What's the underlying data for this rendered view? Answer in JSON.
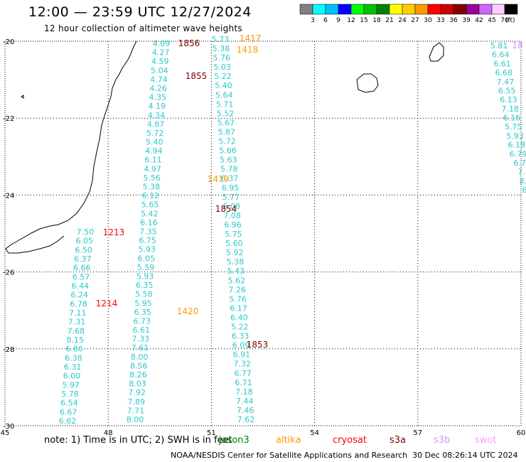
{
  "header": {
    "title": "12:00 — 23:59 UTC 12/27/2024",
    "subtitle": "12 hour collection of altimeter wave heights"
  },
  "colorbar": {
    "colors": [
      "#808080",
      "#00ffff",
      "#00bfff",
      "#0000ff",
      "#00ff00",
      "#00c000",
      "#008000",
      "#ffff00",
      "#ffcc00",
      "#ff9900",
      "#ff0000",
      "#cc0000",
      "#800000",
      "#990099",
      "#cc66ff",
      "#ffccff",
      "#000000"
    ],
    "tick_labels": [
      "3",
      "6",
      "9",
      "12",
      "15",
      "18",
      "21",
      "24",
      "27",
      "30",
      "33",
      "36",
      "39",
      "42",
      "45",
      "70"
    ],
    "unit": "(ft)"
  },
  "axes": {
    "lon_labels": [
      "45",
      "48",
      "51",
      "54",
      "57",
      "60"
    ],
    "lat_labels": [
      "-20",
      "-22",
      "-24",
      "-26",
      "-28",
      "-30"
    ]
  },
  "tracks": {
    "t1": {
      "color": "#2ec8c8",
      "values": [
        "7.50",
        "6.05",
        "6.50",
        "6.37",
        "6.66",
        "6.57",
        "6.44",
        "6.24",
        "6.78",
        "7.11",
        "7.31",
        "7.68",
        "8.15",
        "6.86",
        "6.38",
        "6.31",
        "6.00",
        "5.97",
        "5.78",
        "6.54",
        "6.67",
        "6.62"
      ]
    },
    "t2": {
      "color": "#2ec8c8",
      "values": [
        "4.09",
        "4.27",
        "4.59",
        "5.04",
        "4.74",
        "4.26",
        "4.35",
        "4.19",
        "4.34",
        "4.87",
        "5.72",
        "5.40",
        "4.94",
        "6.11",
        "4.97",
        "5.56",
        "5.38",
        "6.12",
        "5.65",
        "5.42",
        "6.16",
        "7.35",
        "6.75",
        "5.93",
        "6.05",
        "5.59",
        "5.93",
        "6.35",
        "5.58",
        "5.95",
        "6.35",
        "6.73",
        "6.61",
        "7.33",
        "7.61",
        "8.00",
        "8.56",
        "8.26",
        "8.03",
        "7.92",
        "7.89",
        "7.71",
        "8.00"
      ]
    },
    "t3": {
      "color": "#2ec8c8",
      "values": [
        "5.73",
        "5.38",
        "5.76",
        "5.03",
        "5.22",
        "5.40",
        "5.64",
        "5.71",
        "5.52",
        "5.67",
        "5.87",
        "5.72",
        "5.66",
        "5.63",
        "5.78",
        "6.37",
        "6.95",
        "5.77",
        "6.08",
        "7.08",
        "6.96",
        "5.75",
        "5.60",
        "5.92",
        "5.38",
        "5.43",
        "5.62",
        "7.26",
        "5.76",
        "6.17",
        "6.40",
        "5.22",
        "6.33",
        "6.09",
        "6.91",
        "7.32",
        "6.77",
        "6.71",
        "7.18",
        "7.44",
        "7.46",
        "7.62"
      ]
    },
    "t4": {
      "color": "#2ec8c8",
      "values": [
        "5.81",
        "6.64",
        "6.61",
        "6.68",
        "7.47",
        "6.55",
        "6.13",
        "7.18",
        "6.16",
        "5.75",
        "5.93",
        "6.18",
        "6.79",
        "6.7",
        "7.",
        "8.",
        "6"
      ]
    }
  },
  "times": [
    {
      "text": "1856",
      "color": "#800000"
    },
    {
      "text": "1855",
      "color": "#800000"
    },
    {
      "text": "1417",
      "color": "#ff9900"
    },
    {
      "text": "1418",
      "color": "#ff9900"
    },
    {
      "text": "1419",
      "color": "#ff9900"
    },
    {
      "text": "1854",
      "color": "#800000"
    },
    {
      "text": "1213",
      "color": "#ff0000"
    },
    {
      "text": "1214",
      "color": "#ff0000"
    },
    {
      "text": "1420",
      "color": "#ff9900"
    },
    {
      "text": "1853",
      "color": "#800000"
    },
    {
      "text": "18",
      "color": "#cc99ff"
    }
  ],
  "footer": {
    "note": "note:  1) Time is in UTC; 2) SWH is in feet",
    "satellites": [
      {
        "name": "jason3",
        "color": "#008000"
      },
      {
        "name": "altika",
        "color": "#ff9900"
      },
      {
        "name": "cryosat",
        "color": "#ff0000"
      },
      {
        "name": "s3a",
        "color": "#800000"
      },
      {
        "name": "s3b",
        "color": "#cc99ff"
      },
      {
        "name": "swot",
        "color": "#ff99ff"
      }
    ],
    "credit": "NOAA/NESDIS Center for Satellite Applications and Research",
    "timestamp": "30 Dec 08:26:14 UTC 2024"
  }
}
